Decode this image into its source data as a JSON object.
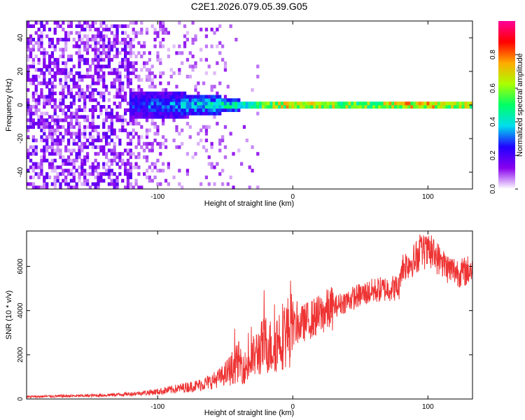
{
  "title": "C2E1.2026.079.05.39.G05",
  "chart_data": [
    {
      "type": "heatmap",
      "title": "",
      "xlabel": "Height of straight line (km)",
      "ylabel": "Frequency (Hz)",
      "xlim": [
        -197,
        133
      ],
      "ylim": [
        -50,
        50
      ],
      "xticks": [
        -100,
        0,
        100
      ],
      "yticks": [
        -40,
        -20,
        0,
        20,
        40
      ],
      "colorbar": {
        "label": "Normalized spectral amplitude",
        "range": [
          0,
          1
        ],
        "ticks": [
          0.0,
          0.2,
          0.4,
          0.6,
          0.8
        ],
        "tick_labels": [
          "0.0",
          "0.2",
          "0.4",
          "0.6",
          "0.8"
        ],
        "colors": [
          "#ffffff",
          "#8800ee",
          "#2200ff",
          "#00ddee",
          "#00ff66",
          "#aaff00",
          "#ffaa00",
          "#ff0000",
          "#ff0099"
        ]
      },
      "signal_band": {
        "center_hz": 0,
        "description": "noise x < -120 km; broad band ~±8 Hz from -120 to -40 km; narrow high-amplitude line near 0 Hz above -40 km",
        "band_halfwidth_hz": [
          [
            -120,
            9
          ],
          [
            -60,
            6
          ],
          [
            -40,
            3
          ],
          [
            0,
            2
          ],
          [
            133,
            2
          ]
        ],
        "peak_amplitude": [
          [
            -120,
            0.25
          ],
          [
            -80,
            0.35
          ],
          [
            -40,
            0.45
          ],
          [
            0,
            0.85
          ],
          [
            50,
            0.7
          ],
          [
            90,
            0.9
          ],
          [
            133,
            0.75
          ]
        ]
      }
    },
    {
      "type": "line",
      "title": "",
      "xlabel": "Height of straight line (km)",
      "ylabel": "SNR (10 * v/v)",
      "xlim": [
        -197,
        133
      ],
      "ylim": [
        0,
        7600
      ],
      "xticks": [
        -100,
        0,
        100
      ],
      "yticks": [
        0,
        2000,
        4000,
        6000
      ],
      "color": "#ee3333",
      "series": [
        {
          "name": "SNR",
          "x": [
            -197,
            -180,
            -160,
            -140,
            -120,
            -100,
            -90,
            -80,
            -70,
            -60,
            -50,
            -45,
            -40,
            -35,
            -30,
            -25,
            -20,
            -15,
            -10,
            -5,
            0,
            10,
            20,
            30,
            40,
            50,
            60,
            70,
            79,
            80,
            90,
            95,
            100,
            105,
            110,
            115,
            120,
            125,
            133
          ],
          "y": [
            100,
            120,
            140,
            170,
            230,
            330,
            420,
            520,
            620,
            800,
            1100,
            1400,
            1700,
            1400,
            1800,
            2200,
            2500,
            2300,
            2800,
            3000,
            3200,
            3500,
            3800,
            4150,
            4450,
            4700,
            4900,
            5000,
            5050,
            5950,
            6300,
            6700,
            6600,
            6500,
            6200,
            5900,
            5800,
            5700,
            5900
          ]
        }
      ]
    }
  ]
}
